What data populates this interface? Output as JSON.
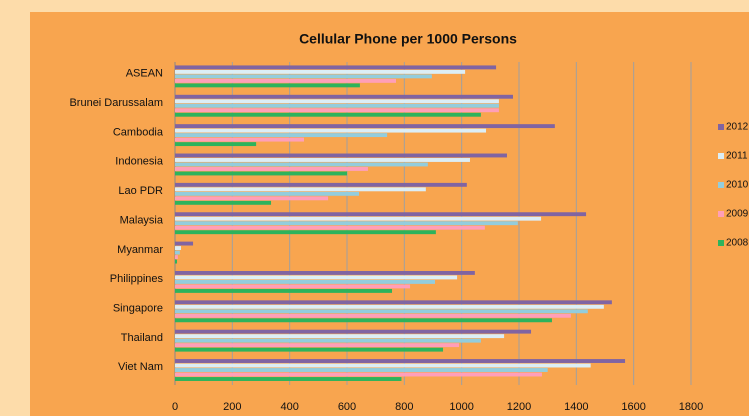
{
  "chart_data": {
    "type": "bar",
    "orientation": "horizontal",
    "title": "Cellular Phone per 1000 Persons",
    "categories": [
      "ASEAN",
      "Brunei Darussalam",
      "Cambodia",
      "Indonesia",
      "Lao PDR",
      "Malaysia",
      "Myanmar",
      "Philippines",
      "Singapore",
      "Thailand",
      "Viet Nam"
    ],
    "series": [
      {
        "name": "2012",
        "color": "#8064a2",
        "values": [
          1120,
          1179,
          1325,
          1158,
          1018,
          1434,
          63,
          1046,
          1524,
          1242,
          1570
        ]
      },
      {
        "name": "2011",
        "color": "#dceef6",
        "values": [
          1012,
          1130,
          1085,
          1029,
          875,
          1277,
          21,
          984,
          1496,
          1148,
          1450
        ]
      },
      {
        "name": "2010",
        "color": "#93cddd",
        "values": [
          896,
          1130,
          740,
          882,
          642,
          1196,
          17,
          907,
          1440,
          1067,
          1300
        ]
      },
      {
        "name": "2009",
        "color": "#ff9fb8",
        "values": [
          771,
          1130,
          450,
          673,
          534,
          1081,
          10,
          820,
          1381,
          991,
          1280
        ]
      },
      {
        "name": "2008",
        "color": "#2db35c",
        "values": [
          645,
          1067,
          283,
          600,
          335,
          910,
          7,
          757,
          1315,
          935,
          790
        ]
      }
    ],
    "xlim": [
      0,
      1800
    ],
    "xticks": [
      0,
      200,
      400,
      600,
      800,
      1000,
      1200,
      1400,
      1600,
      1800
    ],
    "grid": true,
    "legend": "right"
  }
}
